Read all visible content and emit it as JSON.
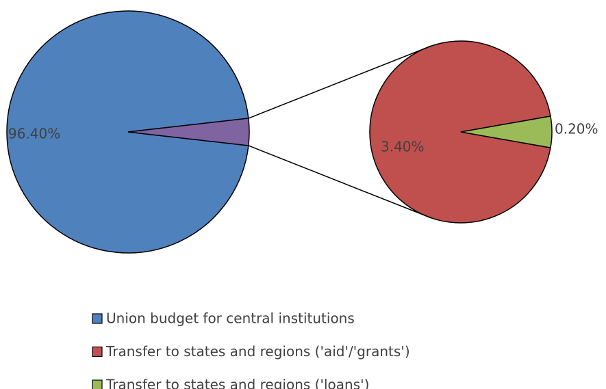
{
  "chart_data": {
    "type": "pie-of-pie",
    "categories": [
      "Union budget for central institutions",
      "Transfer to states and regions ('aid'/'grants')",
      "Transfer to states and regions ('loans')"
    ],
    "values": [
      96.4,
      3.4,
      0.2
    ],
    "value_labels": [
      "96.40%",
      "3.40%",
      "0.20%"
    ],
    "colors": [
      "#4f81bd",
      "#c0504d",
      "#9bbb59"
    ],
    "group_color": "#8064a2",
    "legend": "bottom"
  }
}
